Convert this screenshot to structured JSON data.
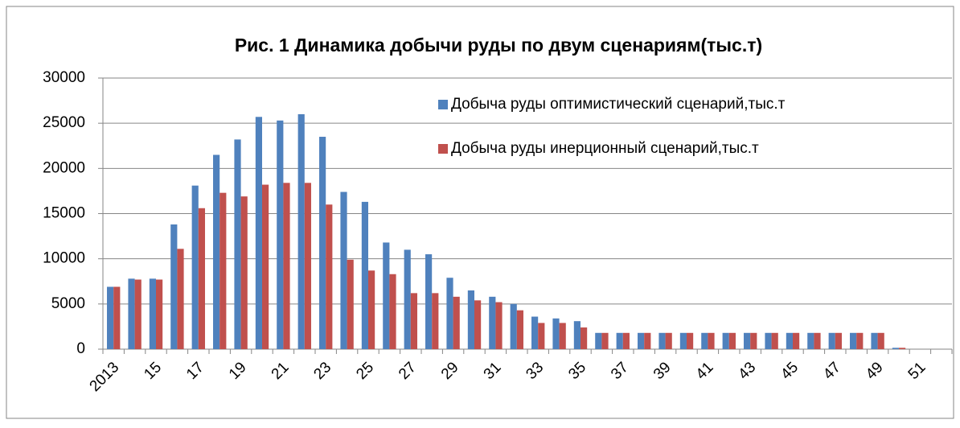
{
  "chart_data": {
    "type": "bar",
    "title": "Рис. 1 Динамика добычи руды по двум сценариям(тыс.т)",
    "categories": [
      "2013",
      null,
      "15",
      null,
      "17",
      null,
      "19",
      null,
      "21",
      null,
      "23",
      null,
      "25",
      null,
      "27",
      null,
      "29",
      null,
      "31",
      null,
      "33",
      null,
      "35",
      null,
      "37",
      null,
      "39",
      null,
      "41",
      null,
      "43",
      null,
      "45",
      null,
      "47",
      null,
      "49",
      null,
      "51",
      null
    ],
    "series": [
      {
        "name": "Добыча руды оптимистический сценарий,тыс.т",
        "color": "#4f81bd",
        "values": [
          6900,
          7800,
          7800,
          13800,
          18100,
          21500,
          23200,
          25700,
          25300,
          26000,
          23500,
          17400,
          16300,
          11800,
          11000,
          10500,
          7900,
          6500,
          5800,
          5000,
          3600,
          3400,
          3100,
          1800,
          1800,
          1800,
          1800,
          1800,
          1800,
          1800,
          1800,
          1800,
          1800,
          1800,
          1800,
          1800,
          1800,
          150,
          0,
          0
        ]
      },
      {
        "name": "Добыча руды инерционный сценарий,тыс.т",
        "color": "#c0504d",
        "values": [
          6900,
          7700,
          7700,
          11100,
          15600,
          17300,
          16900,
          18200,
          18400,
          18400,
          16000,
          9900,
          8700,
          8300,
          6200,
          6200,
          5800,
          5400,
          5200,
          4300,
          2900,
          2900,
          2400,
          1800,
          1800,
          1800,
          1800,
          1800,
          1800,
          1800,
          1800,
          1800,
          1800,
          1800,
          1800,
          1800,
          1800,
          150,
          0,
          0
        ]
      }
    ],
    "ylim": [
      0,
      30000
    ],
    "yticks": [
      0,
      5000,
      10000,
      15000,
      20000,
      25000,
      30000
    ],
    "grid": true,
    "legend": "top-right"
  }
}
